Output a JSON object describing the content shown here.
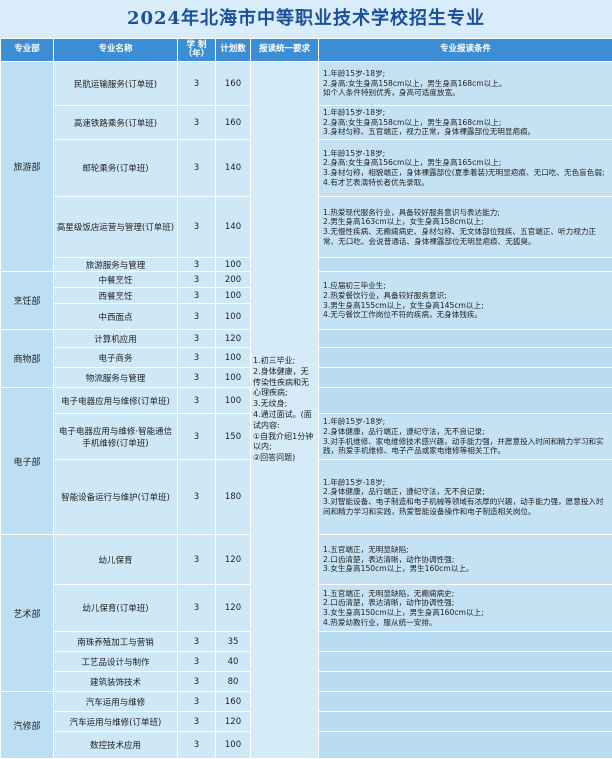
{
  "header": {
    "title": "2024年北海市中等职业技术学校招生专业"
  },
  "table": {
    "columns": [
      "专业部",
      "专业名称",
      "学 制（年）",
      "计划数",
      "报读统一要求",
      "专业报读条件"
    ],
    "unified_requirement": [
      "1.初三毕业;",
      "2.身体健康，无传染性疾病和无心理疾病;",
      "3.无纹身;",
      "4.通过面试。(面试内容:",
      "①自我介绍1分钟以内;",
      "②回答问题)"
    ],
    "groups": [
      {
        "department": "旅游部",
        "rows": [
          {
            "name": "民航运输服务(订单班)",
            "years": 3,
            "plan": 160,
            "conditions": [
              "1.年龄15岁-18岁;",
              "2.身高:女生身高158cm以上，男生身高168cm以上。",
              "如个人条件特别优秀，身高可适度放宽。"
            ]
          },
          {
            "name": "高速铁路乘务(订单班)",
            "years": 3,
            "plan": 160,
            "conditions": [
              "1.年龄15岁-18岁;",
              "2.身高:女生身高158cm以上，男生身高168cm以上;",
              "3.身材匀称、五官端正，视力正常，身体裸露部位无明显疤痕。"
            ]
          },
          {
            "name": "邮轮乘务(订单班)",
            "years": 3,
            "plan": 140,
            "conditions": [
              "1.年龄15岁-18岁;",
              "2.身高:女生身高156cm以上，男生身高165cm以上;",
              "3.身材匀称，相貌端正，身体裸露部位(夏季着装)无明显疤痕、无口吃、无色盲色弱;",
              "4.有才艺表演特长者优先录取。"
            ]
          },
          {
            "name": "高星级饭店运营与管理(订单班)",
            "years": 3,
            "plan": 140,
            "conditions": [
              "1.热爱现代服务行业，具备较好服务意识与表达能力;",
              "2.男生身高163cm以上，女生身高158cm以上;",
              "3.无慢性疾病、无癫痫病史、身材匀称、无文体部位残疾、五官端正、听力视力正常、无口吃、会说普通话、身体裸露部位无明显疤痕、无狐臭。"
            ]
          },
          {
            "name": "旅游服务与管理",
            "years": 3,
            "plan": 100
          }
        ]
      },
      {
        "department": "烹饪部",
        "conditions": [
          "1.应届初三毕业生;",
          "2.热爱餐饮行业，具备较好服务意识;",
          "3.男生身高155cm以上，女生身高145cm以上;",
          "4.无与餐饮工作岗位不符的疾病，无身体残疾。"
        ],
        "rows": [
          {
            "name": "中餐烹饪",
            "years": 3,
            "plan": 200
          },
          {
            "name": "西餐烹饪",
            "years": 3,
            "plan": 100
          },
          {
            "name": "中西面点",
            "years": 3,
            "plan": 100
          }
        ]
      },
      {
        "department": "商物部",
        "rows": [
          {
            "name": "计算机应用",
            "years": 3,
            "plan": 120
          },
          {
            "name": "电子商务",
            "years": 3,
            "plan": 100
          },
          {
            "name": "物流服务与管理",
            "years": 3,
            "plan": 100
          }
        ]
      },
      {
        "department": "电子部",
        "rows": [
          {
            "name": "电子电器应用与维修(订单班)",
            "years": 3,
            "plan": 100
          },
          {
            "name": "电子电器应用与维修·智能通信手机维修(订单班)",
            "years": 3,
            "plan": 150,
            "conditions": [
              "1.年龄15岁-18岁;",
              "2.身体健康，品行端正，遵纪守法，无不良记录;",
              "3.对手机维修、家电维修技术感兴趣，动手能力强，并愿意投入时间和精力学习和实践，热爱手机维修、电子产品或家电维修等相关工作。"
            ]
          },
          {
            "name": "智能设备运行与维护(订单班)",
            "years": 3,
            "plan": 180,
            "conditions": [
              "1.年龄15岁-18岁;",
              "2.身体健康，品行端正，遵纪守法，无不良记录;",
              "3.对智能设备、电子制造和电子机械等领域有浓厚的兴趣，动手能力强，愿意投入时间和精力学习和实践，热爱智能设备操作和电子制造相关岗位。"
            ]
          }
        ]
      },
      {
        "department": "艺术部",
        "rows": [
          {
            "name": "幼儿保育",
            "years": 3,
            "plan": 120,
            "conditions": [
              "1.五官端正，无明显缺陷;",
              "2.口齿清楚，表达清晰，动作协调性强;",
              "3.女生身高150cm以上，男生160cm以上。"
            ]
          },
          {
            "name": "幼儿保育(订单班)",
            "years": 3,
            "plan": 120,
            "conditions": [
              "1.五官端正，无明显缺陷，无癫痫病史;",
              "2.口齿清楚，表达清晰，动作协调性强;",
              "3.女生身高150cm以上，男生身高160cm以上;",
              "4.热爱幼教行业，服从统一安排。"
            ]
          },
          {
            "name": "南珠养殖加工与营销",
            "years": 3,
            "plan": 35
          },
          {
            "name": "工艺品设计与制作",
            "years": 3,
            "plan": 40
          },
          {
            "name": "建筑装饰技术",
            "years": 3,
            "plan": 80
          }
        ]
      },
      {
        "department": "汽修部",
        "rows": [
          {
            "name": "汽车运用与维修",
            "years": 3,
            "plan": 160
          },
          {
            "name": "汽车运用与维修(订单班)",
            "years": 3,
            "plan": 120
          },
          {
            "name": "数控技术应用",
            "years": 3,
            "plan": 100
          }
        ]
      }
    ]
  }
}
